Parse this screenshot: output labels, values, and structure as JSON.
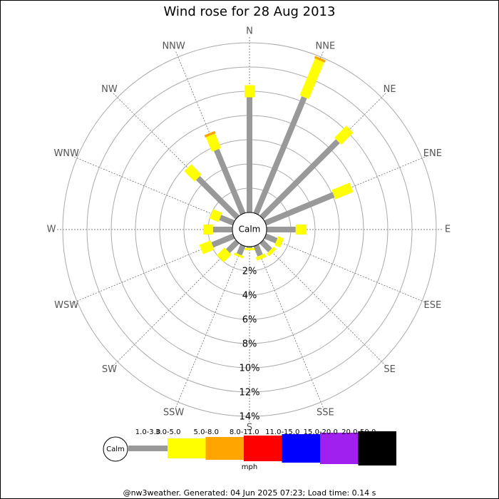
{
  "chart_data": {
    "type": "windrose",
    "title": "Wind rose for 28 Aug 2013",
    "categories": [
      "N",
      "NNE",
      "NE",
      "ENE",
      "E",
      "ESE",
      "SE",
      "SSE",
      "S",
      "SSW",
      "SW",
      "WSW",
      "W",
      "WNW",
      "NW",
      "NNW"
    ],
    "series": [
      {
        "name": "1.0-3.0",
        "color": "#999999",
        "values": [
          9.5,
          10.4,
          8.9,
          6.1,
          2.4,
          1.0,
          1.0,
          0.9,
          0.1,
          0.8,
          1.1,
          1.9,
          1.6,
          1.2,
          4.6,
          5.7
        ]
      },
      {
        "name": "3.0-5.0",
        "color": "#ffff00",
        "values": [
          1.0,
          3.3,
          1.4,
          1.6,
          0.9,
          0.5,
          0.3,
          0.3,
          0.2,
          0.2,
          0.9,
          1.0,
          0.8,
          0.8,
          1.2,
          1.3
        ]
      },
      {
        "name": "5.0-8.0",
        "color": "#ffa500",
        "values": [
          0,
          0.2,
          0,
          0,
          0,
          0,
          0,
          0,
          0,
          0,
          0,
          0,
          0,
          0,
          0,
          0.2
        ]
      },
      {
        "name": "8.0-11.0",
        "color": "#ff0000",
        "values": [
          0,
          0,
          0,
          0,
          0,
          0,
          0,
          0,
          0,
          0,
          0,
          0,
          0,
          0,
          0,
          0
        ]
      },
      {
        "name": "11.0-15.0",
        "color": "#0000ff",
        "values": [
          0,
          0,
          0,
          0,
          0,
          0,
          0,
          0,
          0,
          0,
          0,
          0,
          0,
          0,
          0,
          0
        ]
      },
      {
        "name": "15.0-20.0",
        "color": "#a020f0",
        "values": [
          0,
          0,
          0,
          0,
          0,
          0,
          0,
          0,
          0,
          0,
          0,
          0,
          0,
          0,
          0,
          0
        ]
      },
      {
        "name": "20.0-50.0",
        "color": "#000000",
        "values": [
          0,
          0,
          0,
          0,
          0,
          0,
          0,
          0,
          0,
          0,
          0,
          0,
          0,
          0,
          0,
          0
        ]
      }
    ],
    "rlim": [
      0,
      14
    ],
    "rticks": [
      {
        "value": 2,
        "label": "2%"
      },
      {
        "value": 4,
        "label": "4%"
      },
      {
        "value": 6,
        "label": "6%"
      },
      {
        "value": 8,
        "label": "8%"
      },
      {
        "value": 10,
        "label": "10%"
      },
      {
        "value": 12,
        "label": "12%"
      },
      {
        "value": 14,
        "label": "14%"
      }
    ],
    "calm_label": "Calm",
    "legend_unit": "mph",
    "footer": "@nw3weather. Generated: 04 Jun 2025 07:23; Load time: 0.14 s"
  }
}
